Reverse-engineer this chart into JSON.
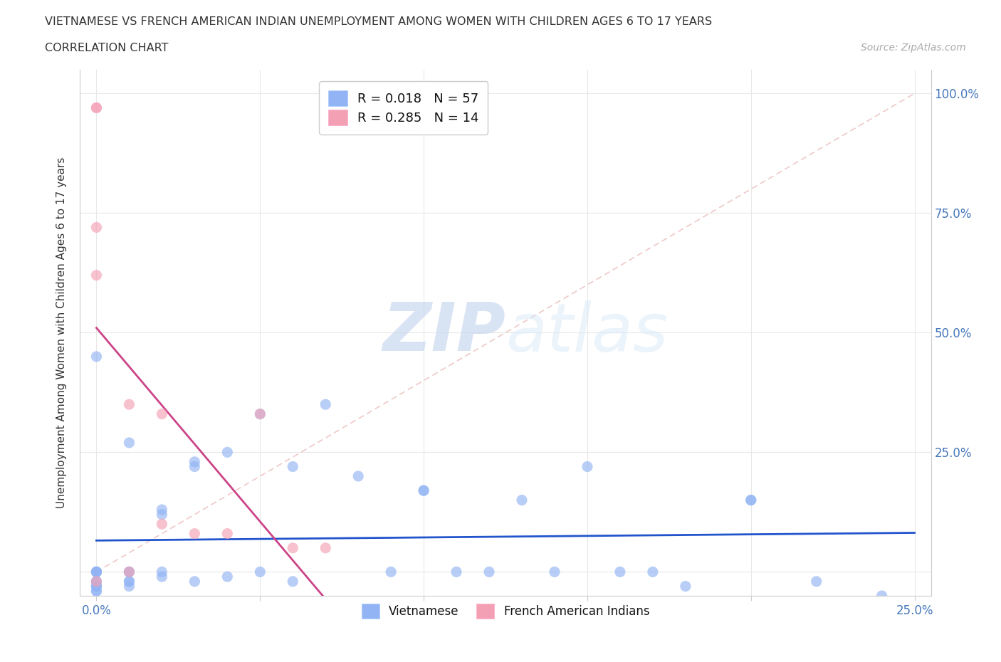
{
  "title_line1": "VIETNAMESE VS FRENCH AMERICAN INDIAN UNEMPLOYMENT AMONG WOMEN WITH CHILDREN AGES 6 TO 17 YEARS",
  "title_line2": "CORRELATION CHART",
  "source_text": "Source: ZipAtlas.com",
  "ylabel": "Unemployment Among Women with Children Ages 6 to 17 years",
  "xlim": [
    -0.005,
    0.255
  ],
  "ylim": [
    -0.05,
    1.05
  ],
  "xticks": [
    0.0,
    0.05,
    0.1,
    0.15,
    0.2,
    0.25
  ],
  "yticks": [
    0.0,
    0.25,
    0.5,
    0.75,
    1.0
  ],
  "xticklabels": [
    "0.0%",
    "",
    "",
    "",
    "",
    "25.0%"
  ],
  "yticklabels_right": [
    "",
    "25.0%",
    "50.0%",
    "75.0%",
    "100.0%"
  ],
  "watermark_zip": "ZIP",
  "watermark_atlas": "atlas",
  "vietnamese_color": "#92b4f4",
  "french_color": "#f4a0b4",
  "trendline_vietnamese_color": "#2255cc",
  "trendline_french_color": "#cc4488",
  "diagonal_color": "#f0c8c8",
  "grid_color": "#e8e8e8",
  "vietnamese_x": [
    0.0,
    0.0,
    0.0,
    0.0,
    0.0,
    0.0,
    0.0,
    0.0,
    0.0,
    0.0,
    0.0,
    0.0,
    0.01,
    0.01,
    0.01,
    0.01,
    0.01,
    0.01,
    0.02,
    0.02,
    0.02,
    0.02,
    0.03,
    0.03,
    0.03,
    0.04,
    0.04,
    0.05,
    0.05,
    0.06,
    0.06,
    0.07,
    0.08,
    0.09,
    0.1,
    0.1,
    0.11,
    0.12,
    0.13,
    0.14,
    0.15,
    0.16,
    0.17,
    0.18,
    0.2,
    0.2,
    0.22,
    0.24
  ],
  "vietnamese_y": [
    0.0,
    0.0,
    0.0,
    0.0,
    -0.02,
    -0.02,
    -0.03,
    -0.03,
    -0.03,
    -0.04,
    -0.04,
    0.45,
    0.0,
    0.0,
    -0.02,
    -0.02,
    -0.03,
    0.27,
    -0.01,
    0.0,
    0.12,
    0.13,
    -0.02,
    0.22,
    0.23,
    -0.01,
    0.25,
    0.0,
    0.33,
    -0.02,
    0.22,
    0.35,
    0.2,
    0.0,
    0.17,
    0.17,
    0.0,
    0.0,
    0.15,
    0.0,
    0.22,
    0.0,
    0.0,
    -0.03,
    0.15,
    0.15,
    -0.02,
    -0.05
  ],
  "french_x": [
    0.0,
    0.0,
    0.0,
    0.0,
    0.0,
    0.01,
    0.01,
    0.02,
    0.02,
    0.03,
    0.04,
    0.05,
    0.06,
    0.07
  ],
  "french_y": [
    0.97,
    0.97,
    0.72,
    0.62,
    -0.02,
    0.0,
    0.35,
    0.1,
    0.33,
    0.08,
    0.08,
    0.33,
    0.05,
    0.05
  ]
}
